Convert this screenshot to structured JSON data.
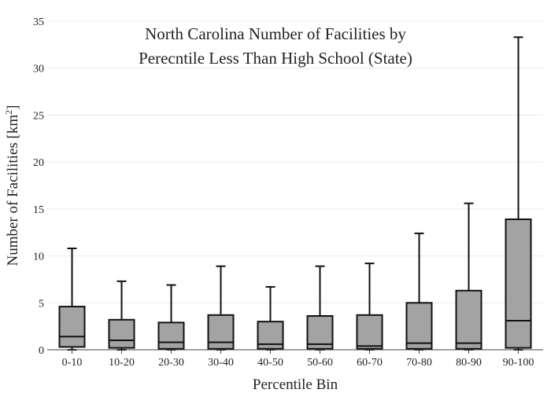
{
  "chart_data": {
    "type": "box",
    "title_lines": [
      "North Carolina Number of Facilities by",
      "Perecntile Less Than High School (State)"
    ],
    "xlabel": "Percentile Bin",
    "ylabel": "Number of Facilities  [km",
    "ylabel_sup": "2",
    "ylabel_end": "]",
    "ylim": [
      0,
      35
    ],
    "yticks": [
      0,
      5,
      10,
      15,
      20,
      25,
      30,
      35
    ],
    "grid": true,
    "box_fill": "#a3a3a3",
    "categories": [
      "0-10",
      "10-20",
      "20-30",
      "30-40",
      "40-50",
      "50-60",
      "60-70",
      "70-80",
      "80-90",
      "90-100"
    ],
    "boxes": [
      {
        "min": 0,
        "q1": 0.3,
        "median": 1.4,
        "q3": 4.6,
        "max": 10.8
      },
      {
        "min": 0,
        "q1": 0.2,
        "median": 1.0,
        "q3": 3.2,
        "max": 7.3
      },
      {
        "min": 0,
        "q1": 0.1,
        "median": 0.8,
        "q3": 2.9,
        "max": 6.9
      },
      {
        "min": 0,
        "q1": 0.1,
        "median": 0.8,
        "q3": 3.7,
        "max": 8.9
      },
      {
        "min": 0,
        "q1": 0.1,
        "median": 0.6,
        "q3": 3.0,
        "max": 6.7
      },
      {
        "min": 0,
        "q1": 0.1,
        "median": 0.6,
        "q3": 3.6,
        "max": 8.9
      },
      {
        "min": 0,
        "q1": 0.1,
        "median": 0.4,
        "q3": 3.7,
        "max": 9.2
      },
      {
        "min": 0,
        "q1": 0.1,
        "median": 0.7,
        "q3": 5.0,
        "max": 12.4
      },
      {
        "min": 0,
        "q1": 0.1,
        "median": 0.7,
        "q3": 6.3,
        "max": 15.6
      },
      {
        "min": 0,
        "q1": 0.2,
        "median": 3.1,
        "q3": 13.9,
        "max": 33.3
      }
    ]
  }
}
